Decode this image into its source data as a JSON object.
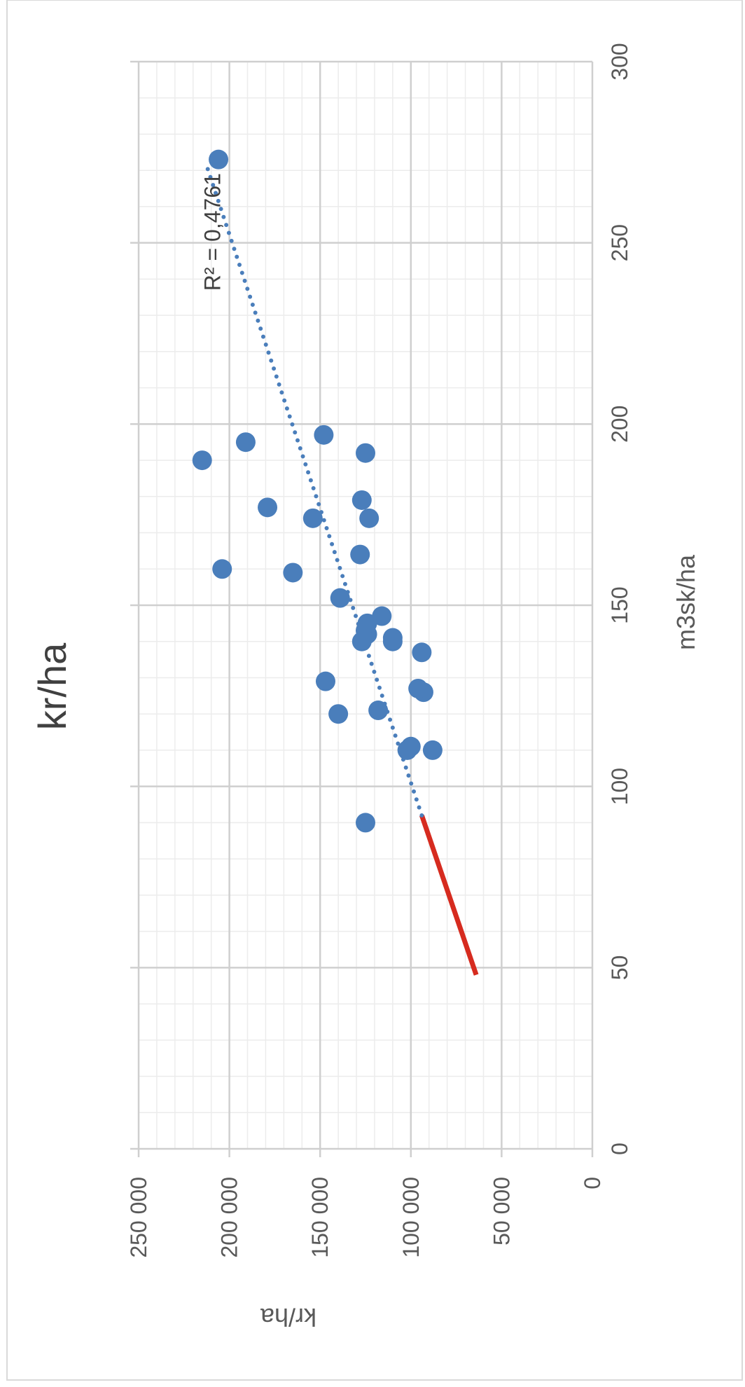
{
  "chart_data": {
    "type": "scatter",
    "title": "kr/ha",
    "xlabel": "m3sk/ha",
    "ylabel": "kr/ha",
    "xlim": [
      0,
      300
    ],
    "ylim": [
      0,
      250000
    ],
    "x_ticks": [
      0,
      50,
      100,
      150,
      200,
      250,
      300
    ],
    "x_tick_labels": [
      "0",
      "50",
      "100",
      "150",
      "200",
      "250",
      "300"
    ],
    "y_ticks": [
      0,
      50000,
      100000,
      150000,
      200000,
      250000
    ],
    "y_tick_labels": [
      "0",
      "50 000",
      "100 000",
      "150 000",
      "200 000",
      "250 000"
    ],
    "grid": true,
    "minor_grid": true,
    "rotation": "chart rotated 90 degrees counter-clockwise",
    "points": [
      {
        "x": 90,
        "y": 125000
      },
      {
        "x": 110,
        "y": 88000
      },
      {
        "x": 110,
        "y": 102000
      },
      {
        "x": 111,
        "y": 100000
      },
      {
        "x": 120,
        "y": 140000
      },
      {
        "x": 121,
        "y": 118000
      },
      {
        "x": 126,
        "y": 93000
      },
      {
        "x": 127,
        "y": 96000
      },
      {
        "x": 129,
        "y": 147000
      },
      {
        "x": 137,
        "y": 94000
      },
      {
        "x": 140,
        "y": 110000
      },
      {
        "x": 140,
        "y": 127000
      },
      {
        "x": 141,
        "y": 110000
      },
      {
        "x": 142,
        "y": 124000
      },
      {
        "x": 143,
        "y": 125000
      },
      {
        "x": 145,
        "y": 124000
      },
      {
        "x": 147,
        "y": 116000
      },
      {
        "x": 152,
        "y": 139000
      },
      {
        "x": 159,
        "y": 165000
      },
      {
        "x": 160,
        "y": 204000
      },
      {
        "x": 164,
        "y": 128000
      },
      {
        "x": 174,
        "y": 123000
      },
      {
        "x": 174,
        "y": 154000
      },
      {
        "x": 177,
        "y": 179000
      },
      {
        "x": 179,
        "y": 127000
      },
      {
        "x": 190,
        "y": 215000
      },
      {
        "x": 192,
        "y": 125000
      },
      {
        "x": 195,
        "y": 191000
      },
      {
        "x": 197,
        "y": 148000
      },
      {
        "x": 273,
        "y": 206000
      }
    ],
    "trendline": {
      "type": "linear",
      "style": "dotted",
      "color": "#4a7ebb",
      "start": {
        "x": 92,
        "y": 94000
      },
      "end": {
        "x": 272,
        "y": 213000
      },
      "label": "R² = 0,4761"
    },
    "reference_line": {
      "color": "#d62b1f",
      "start": {
        "x": 48,
        "y": 64000
      },
      "end": {
        "x": 92,
        "y": 94000
      }
    },
    "point_color": "#4a7ebb"
  }
}
